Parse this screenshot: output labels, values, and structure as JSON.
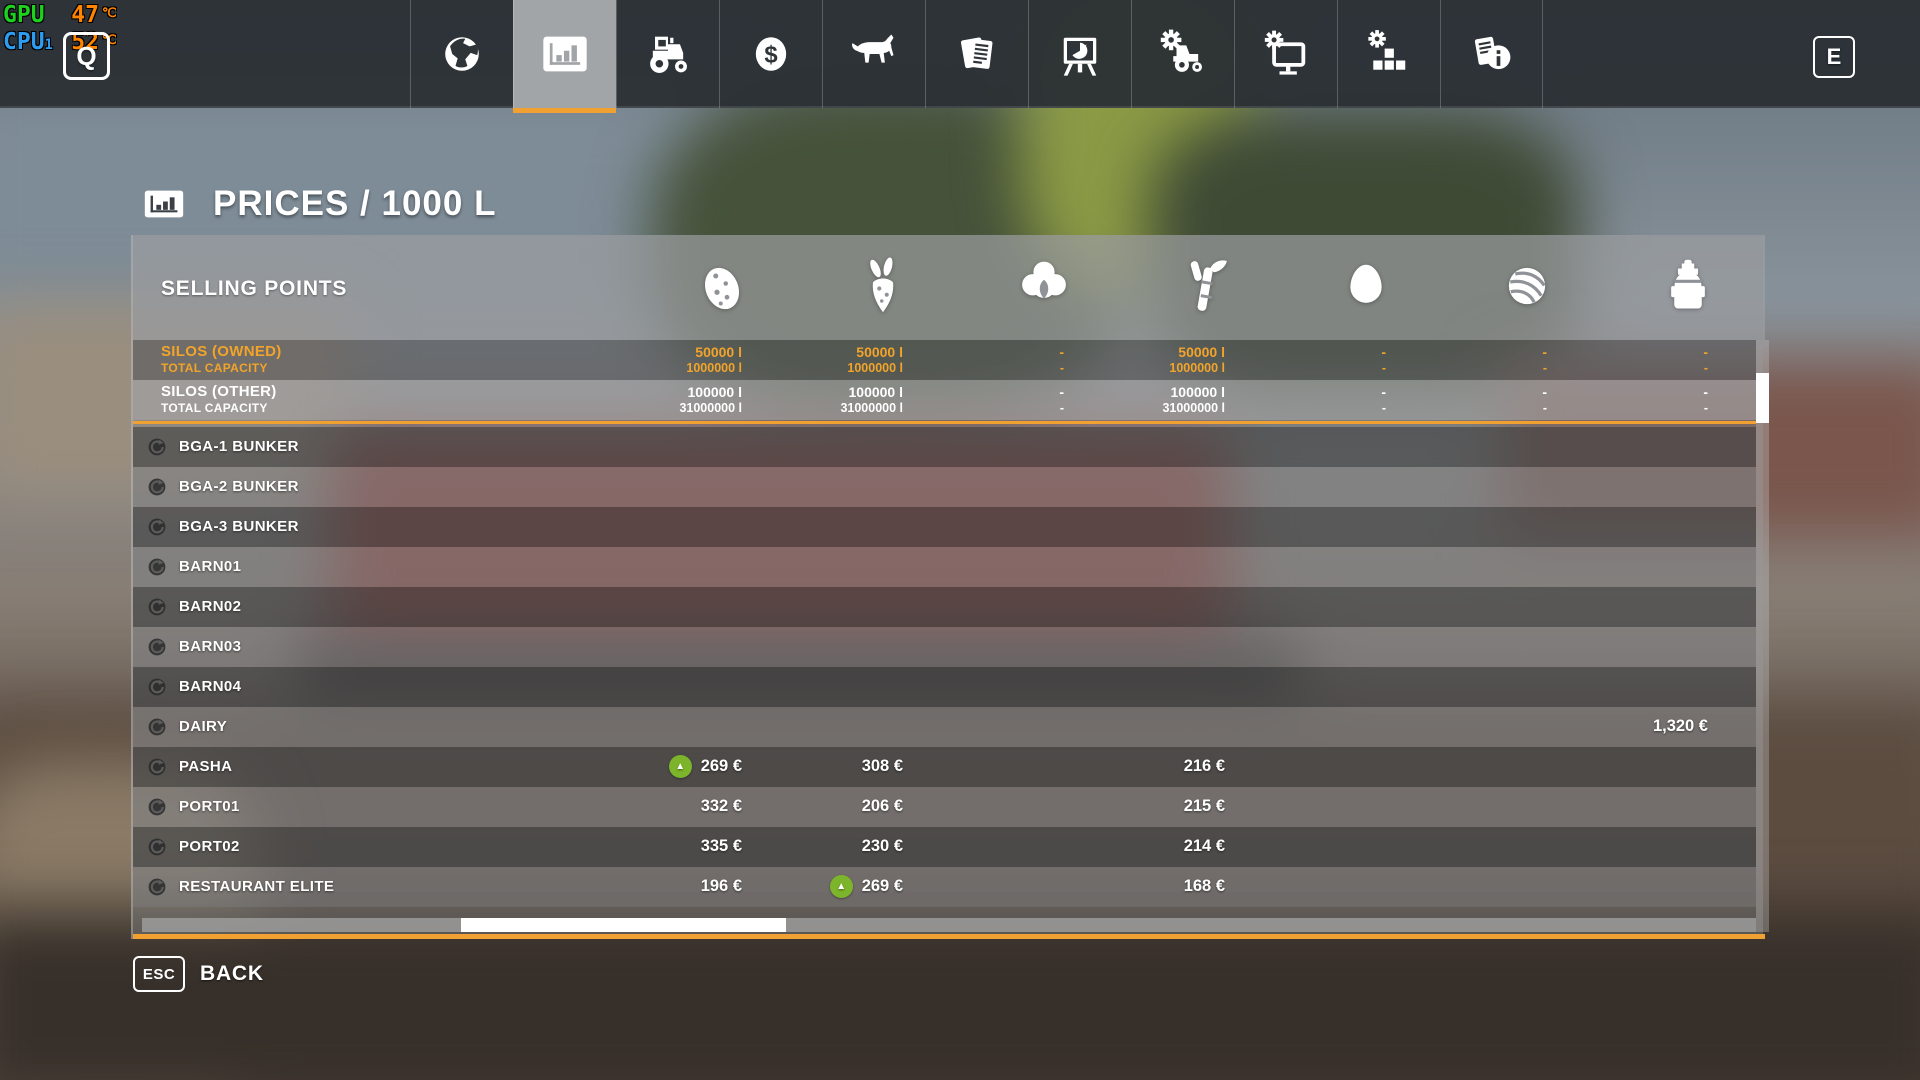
{
  "hud": {
    "gpu_label": "GPU",
    "gpu_temp": "47",
    "gpu_unit": "℃",
    "cpu_label": "CPU",
    "cpu_label_sub": "1",
    "cpu_temp": "52",
    "cpu_unit": "℃",
    "left_key": "Q",
    "right_key": "E"
  },
  "nav": {
    "tabs": [
      {
        "name": "map",
        "icon": "globe",
        "selected": false
      },
      {
        "name": "prices",
        "icon": "stats",
        "selected": true
      },
      {
        "name": "vehicles",
        "icon": "tractor",
        "selected": false
      },
      {
        "name": "finances",
        "icon": "dollar",
        "selected": false
      },
      {
        "name": "animals",
        "icon": "cow",
        "selected": false
      },
      {
        "name": "contracts",
        "icon": "documents",
        "selected": false
      },
      {
        "name": "production",
        "icon": "easel-chart",
        "selected": false
      },
      {
        "name": "vehicle-settings",
        "icon": "tractor-gear",
        "selected": false
      },
      {
        "name": "display-settings",
        "icon": "monitor-gear",
        "selected": false
      },
      {
        "name": "game-settings",
        "icon": "blocks-gear",
        "selected": false
      },
      {
        "name": "help",
        "icon": "info-documents",
        "selected": false
      }
    ]
  },
  "title": {
    "label": "PRICES / 1000 L"
  },
  "table": {
    "header_label": "SELLING POINTS",
    "columns": [
      "potato",
      "carrot",
      "cotton",
      "sugarcane",
      "egg",
      "wool",
      "milk"
    ],
    "trend_up_symbol": "▲",
    "silo_rows": [
      {
        "name": "SILOS (OWNED)",
        "subtitle": "TOTAL CAPACITY",
        "owned": true,
        "fill": [
          "50000 l",
          "50000 l",
          "-",
          "50000 l",
          "-",
          "-",
          "-"
        ],
        "capacity": [
          "1000000 l",
          "1000000 l",
          "-",
          "1000000 l",
          "-",
          "-",
          "-"
        ]
      },
      {
        "name": "SILOS (OTHER)",
        "subtitle": "TOTAL CAPACITY",
        "owned": false,
        "fill": [
          "100000 l",
          "100000 l",
          "-",
          "100000 l",
          "-",
          "-",
          "-"
        ],
        "capacity": [
          "31000000 l",
          "31000000 l",
          "-",
          "31000000 l",
          "-",
          "-",
          "-"
        ]
      }
    ],
    "rows": [
      {
        "name": "BGA-1 BUNKER",
        "prices": [
          "",
          "",
          "",
          "",
          "",
          "",
          ""
        ]
      },
      {
        "name": "BGA-2 BUNKER",
        "prices": [
          "",
          "",
          "",
          "",
          "",
          "",
          ""
        ]
      },
      {
        "name": "BGA-3 BUNKER",
        "prices": [
          "",
          "",
          "",
          "",
          "",
          "",
          ""
        ]
      },
      {
        "name": "BARN01",
        "prices": [
          "",
          "",
          "",
          "",
          "",
          "",
          ""
        ]
      },
      {
        "name": "BARN02",
        "prices": [
          "",
          "",
          "",
          "",
          "",
          "",
          ""
        ]
      },
      {
        "name": "BARN03",
        "prices": [
          "",
          "",
          "",
          "",
          "",
          "",
          ""
        ]
      },
      {
        "name": "BARN04",
        "prices": [
          "",
          "",
          "",
          "",
          "",
          "",
          ""
        ]
      },
      {
        "name": "DAIRY",
        "prices": [
          "",
          "",
          "",
          "",
          "",
          "",
          "1,320 €"
        ]
      },
      {
        "name": "PASHA",
        "prices": [
          "269 €",
          "308 €",
          "",
          "216 €",
          "",
          "",
          ""
        ],
        "trend_up_cols": [
          0
        ]
      },
      {
        "name": "PORT01",
        "prices": [
          "332 €",
          "206 €",
          "",
          "215 €",
          "",
          "",
          ""
        ]
      },
      {
        "name": "PORT02",
        "prices": [
          "335 €",
          "230 €",
          "",
          "214 €",
          "",
          "",
          ""
        ]
      },
      {
        "name": "RESTAURANT ELITE",
        "prices": [
          "196 €",
          "269 €",
          "",
          "168 €",
          "",
          "",
          ""
        ],
        "trend_up_cols": [
          1
        ]
      }
    ]
  },
  "footer": {
    "key": "ESC",
    "label": "BACK"
  },
  "colors": {
    "accent_orange": "#f0a132",
    "trend_green": "#7cb52b",
    "selected_tab": "#a2a5a8"
  }
}
